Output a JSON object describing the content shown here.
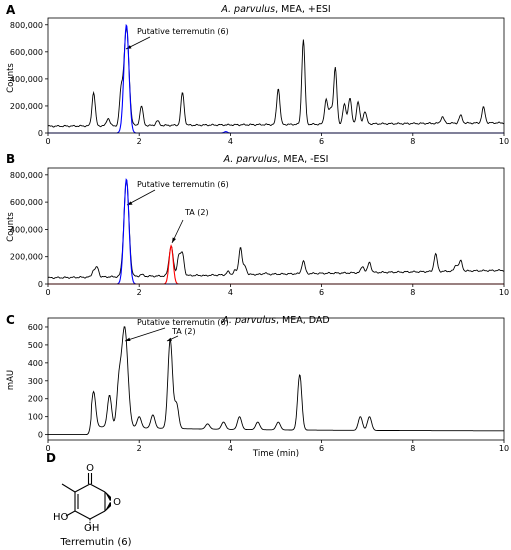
{
  "panels": [
    {
      "letter": "A",
      "title_italic": "A. parvulus",
      "title_rest": ", MEA, +ESI",
      "ylabel": "Counts",
      "yticks": [
        "0",
        "200,000",
        "400,000",
        "600,000",
        "800,000"
      ],
      "annotation": "Putative terremutin (6)"
    },
    {
      "letter": "B",
      "title_italic": "A. parvulus",
      "title_rest": ", MEA, -ESI",
      "ylabel": "Counts",
      "yticks": [
        "0",
        "200,000",
        "400,000",
        "600,000",
        "800,000"
      ],
      "annotation": "Putative terremutin (6)",
      "annotation2": "TA (2)"
    },
    {
      "letter": "C",
      "title_italic": "A. parvulus",
      "title_rest": ", MEA, DAD",
      "ylabel": "mAU",
      "yticks": [
        "0",
        "100",
        "200",
        "300",
        "400",
        "500",
        "600"
      ],
      "annotation": "Putative terremutin (6)",
      "annotation2": "TA (2)",
      "xlabel": "Time (min)"
    }
  ],
  "xticks": [
    "0",
    "2",
    "4",
    "6",
    "8",
    "10"
  ],
  "structure": {
    "letter": "D",
    "atom_o": "O",
    "atom_ho": "HO",
    "atom_oh": "OH",
    "caption": "Terremutin (6)"
  },
  "chart_data": [
    {
      "type": "line",
      "title": "A. parvulus, MEA, +ESI",
      "xlabel": "",
      "ylabel": "Counts",
      "xlim": [
        0,
        10
      ],
      "ylim": [
        0,
        850000
      ],
      "baseline": {
        "x": [
          0,
          10
        ],
        "y": [
          50000,
          75000
        ]
      },
      "series": [
        {
          "color": "#000000",
          "peaks": [
            {
              "x": 1.0,
              "y": 300000
            },
            {
              "x": 1.32,
              "y": 110000
            },
            {
              "x": 1.6,
              "y": 280000
            },
            {
              "x": 1.72,
              "y": 780000
            },
            {
              "x": 2.05,
              "y": 200000
            },
            {
              "x": 2.4,
              "y": 90000
            },
            {
              "x": 2.95,
              "y": 300000
            },
            {
              "x": 5.05,
              "y": 330000
            },
            {
              "x": 5.6,
              "y": 690000
            },
            {
              "x": 6.1,
              "y": 250000
            },
            {
              "x": 6.2,
              "y": 180000
            },
            {
              "x": 6.3,
              "y": 480000
            },
            {
              "x": 6.5,
              "y": 210000
            },
            {
              "x": 6.62,
              "y": 260000
            },
            {
              "x": 6.8,
              "y": 230000
            },
            {
              "x": 6.95,
              "y": 160000
            },
            {
              "x": 8.65,
              "y": 120000
            },
            {
              "x": 9.05,
              "y": 130000
            },
            {
              "x": 9.55,
              "y": 190000
            }
          ]
        },
        {
          "color": "#0000ff",
          "peaks": [
            {
              "x": 1.72,
              "y": 800000
            },
            {
              "x": 3.9,
              "y": 10000
            }
          ]
        }
      ],
      "annotations": [
        {
          "text": "Putative terremutin (6)",
          "x": 1.72,
          "y": 540000
        }
      ]
    },
    {
      "type": "line",
      "title": "A. parvulus, MEA, -ESI",
      "xlabel": "",
      "ylabel": "Counts",
      "xlim": [
        0,
        10
      ],
      "ylim": [
        0,
        850000
      ],
      "baseline": {
        "x": [
          0,
          10
        ],
        "y": [
          45000,
          100000
        ]
      },
      "series": [
        {
          "color": "#000000",
          "peaks": [
            {
              "x": 1.0,
              "y": 100000
            },
            {
              "x": 1.08,
              "y": 120000
            },
            {
              "x": 1.72,
              "y": 760000
            },
            {
              "x": 2.05,
              "y": 70000
            },
            {
              "x": 2.7,
              "y": 280000
            },
            {
              "x": 2.87,
              "y": 210000
            },
            {
              "x": 2.95,
              "y": 220000
            },
            {
              "x": 3.45,
              "y": 60000
            },
            {
              "x": 3.95,
              "y": 90000
            },
            {
              "x": 4.1,
              "y": 100000
            },
            {
              "x": 4.22,
              "y": 270000
            },
            {
              "x": 4.32,
              "y": 130000
            },
            {
              "x": 4.75,
              "y": 80000
            },
            {
              "x": 5.6,
              "y": 170000
            },
            {
              "x": 6.9,
              "y": 130000
            },
            {
              "x": 7.05,
              "y": 160000
            },
            {
              "x": 8.5,
              "y": 220000
            },
            {
              "x": 8.95,
              "y": 140000
            },
            {
              "x": 9.05,
              "y": 170000
            }
          ]
        },
        {
          "color": "#0000ff",
          "peaks": [
            {
              "x": 1.72,
              "y": 770000
            }
          ]
        },
        {
          "color": "#ff0000",
          "peaks": [
            {
              "x": 2.7,
              "y": 280000
            }
          ]
        }
      ],
      "annotations": [
        {
          "text": "Putative terremutin (6)",
          "x": 1.72,
          "y": 560000
        },
        {
          "text": "TA (2)",
          "x": 2.7,
          "y": 280000
        }
      ]
    },
    {
      "type": "line",
      "title": "A. parvulus, MEA, DAD",
      "xlabel": "Time (min)",
      "ylabel": "mAU",
      "xlim": [
        0,
        10
      ],
      "ylim": [
        -30,
        650
      ],
      "series": [
        {
          "color": "#000000",
          "peaks": [
            {
              "x": 1.0,
              "y": 240
            },
            {
              "x": 1.35,
              "y": 220
            },
            {
              "x": 1.55,
              "y": 240
            },
            {
              "x": 1.68,
              "y": 600
            },
            {
              "x": 2.0,
              "y": 100
            },
            {
              "x": 2.3,
              "y": 110
            },
            {
              "x": 2.68,
              "y": 530
            },
            {
              "x": 2.82,
              "y": 170
            },
            {
              "x": 3.5,
              "y": 60
            },
            {
              "x": 3.85,
              "y": 70
            },
            {
              "x": 4.2,
              "y": 100
            },
            {
              "x": 4.6,
              "y": 70
            },
            {
              "x": 5.05,
              "y": 70
            },
            {
              "x": 5.52,
              "y": 335
            },
            {
              "x": 6.85,
              "y": 100
            },
            {
              "x": 7.05,
              "y": 100
            }
          ]
        }
      ],
      "annotations": [
        {
          "text": "Putative terremutin (6)",
          "x": 1.68,
          "y": 500
        },
        {
          "text": "TA (2)",
          "x": 2.68,
          "y": 520
        }
      ]
    }
  ]
}
